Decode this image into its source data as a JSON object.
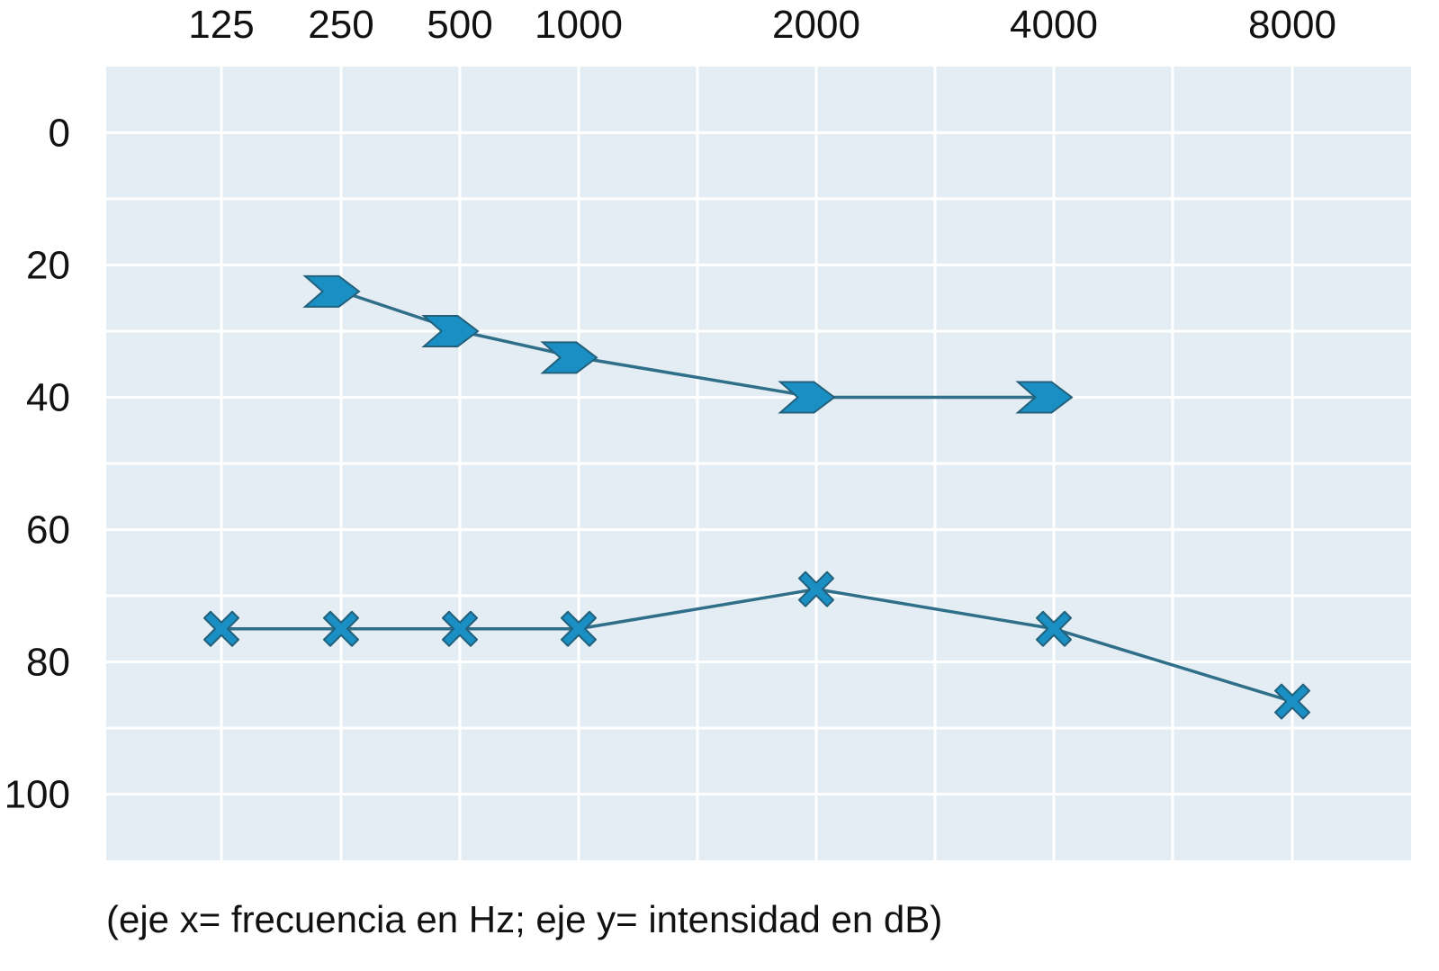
{
  "chart_data": {
    "type": "line",
    "caption": "(eje x= frecuencia en Hz; eje y= intensidad en dB)",
    "x_tick_labels": [
      "125",
      "250",
      "500",
      "1000",
      "2000",
      "4000",
      "8000"
    ],
    "y_tick_labels": [
      "0",
      "20",
      "40",
      "60",
      "80",
      "100"
    ],
    "y_ticks": [
      0,
      20,
      40,
      60,
      80,
      100
    ],
    "ylim": [
      -10,
      110
    ],
    "y_inverted": true,
    "grid": true,
    "series": [
      {
        "marker": "chevron",
        "color": "#1a8fc4",
        "line_color": "#2f6f8a",
        "x": [
          "250",
          "500",
          "1000",
          "2000",
          "4000"
        ],
        "values": [
          24,
          30,
          34,
          40,
          40
        ]
      },
      {
        "marker": "x",
        "color": "#1a8fc4",
        "line_color": "#2f6f8a",
        "x": [
          "125",
          "250",
          "500",
          "1000",
          "2000",
          "4000",
          "8000"
        ],
        "values": [
          75,
          75,
          75,
          75,
          69,
          75,
          86
        ]
      }
    ],
    "colors": {
      "plot_background": "#e3edf3",
      "grid": "#ffffff"
    }
  }
}
